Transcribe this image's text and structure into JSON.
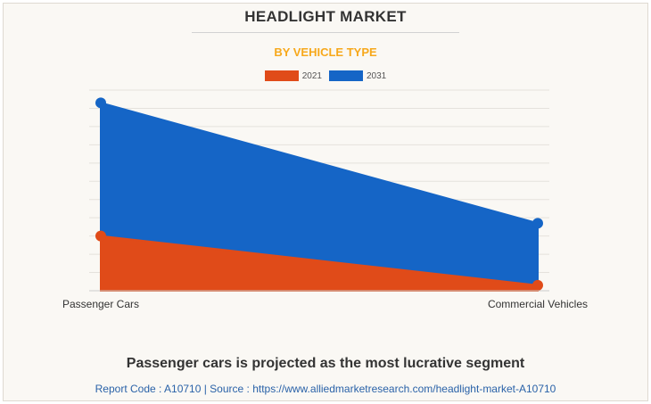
{
  "header": {
    "title": "HEADLIGHT MARKET",
    "subtitle": "BY VEHICLE TYPE"
  },
  "legend": [
    {
      "label": "2021",
      "color": "#e04b19"
    },
    {
      "label": "2031",
      "color": "#1565c6"
    }
  ],
  "chart_data": {
    "type": "area",
    "categories": [
      "Passenger Cars",
      "Commercial Vehicles"
    ],
    "series": [
      {
        "name": "2021",
        "values": [
          30,
          3
        ],
        "color": "#e04b19"
      },
      {
        "name": "2031",
        "values": [
          103,
          37
        ],
        "color": "#1565c6"
      }
    ],
    "ylim": [
      0,
      110
    ],
    "grid": true,
    "legend_position": "top-center",
    "stacked": false
  },
  "footer": {
    "headline": "Passenger cars is projected as the most lucrative segment",
    "source": "Report Code : A10710  |  Source : https://www.alliedmarketresearch.com/headlight-market-A10710"
  }
}
